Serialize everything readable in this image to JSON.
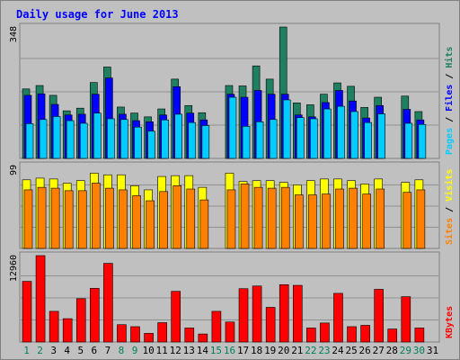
{
  "chart_data": {
    "type": "bar",
    "title": "Daily usage for June 2013",
    "x": [
      "1",
      "2",
      "3",
      "4",
      "5",
      "6",
      "7",
      "8",
      "9",
      "10",
      "11",
      "12",
      "13",
      "14",
      "15",
      "16",
      "17",
      "18",
      "19",
      "20",
      "21",
      "22",
      "23",
      "24",
      "25",
      "26",
      "27",
      "28",
      "29",
      "30",
      "31"
    ],
    "weekend_days": [
      1,
      2,
      8,
      9,
      15,
      16,
      22,
      23,
      29,
      30
    ],
    "panels": [
      {
        "id": "top",
        "ymax_label": "348",
        "ymax": 348,
        "right_label_parts": [
          "Pages",
          " / ",
          "Files",
          " / ",
          "Hits"
        ],
        "series": [
          {
            "name": "Hits",
            "color": "#1e8060",
            "values": [
              184,
              193,
              167,
              126,
              133,
              201,
              242,
              136,
              120,
              110,
              131,
              210,
              140,
              121,
              0,
              193,
              192,
              245,
              210,
              348,
              147,
              142,
              170,
              200,
              191,
              135,
              162,
              0,
              165,
              124,
              0
            ]
          },
          {
            "name": "Files",
            "color": "#0000ff",
            "values": [
              167,
              171,
              143,
              115,
              117,
              170,
              213,
              117,
              100,
              97,
              115,
              190,
              120,
              102,
              0,
              170,
              162,
              180,
              170,
              170,
              115,
              110,
              148,
              180,
              152,
              107,
              140,
              0,
              130,
              102,
              0
            ]
          },
          {
            "name": "Pages",
            "color": "#00ccff",
            "values": [
              92,
              103,
              111,
              100,
              93,
              120,
              105,
              103,
              83,
              72,
              102,
              117,
              95,
              87,
              0,
              162,
              85,
              97,
              103,
              155,
              108,
              105,
              131,
              138,
              124,
              95,
              118,
              0,
              93,
              90,
              0
            ]
          }
        ]
      },
      {
        "id": "middle",
        "ymax_label": "99",
        "ymax": 99,
        "right_label_parts": [
          "Sites",
          " / ",
          "Visits"
        ],
        "series": [
          {
            "name": "Visits",
            "color": "#ffff00",
            "values": [
              82,
              84,
              83,
              78,
              81,
              90,
              88,
              88,
              75,
              70,
              86,
              87,
              87,
              73,
              0,
              90,
              80,
              81,
              81,
              79,
              76,
              81,
              83,
              83,
              81,
              77,
              83,
              0,
              79,
              82,
              0
            ]
          },
          {
            "name": "Sites",
            "color": "#ff8000",
            "values": [
              70,
              73,
              72,
              69,
              69,
              78,
              72,
              70,
              63,
              57,
              68,
              75,
              71,
              58,
              0,
              70,
              77,
              73,
              72,
              73,
              64,
              64,
              65,
              71,
              72,
              65,
              71,
              0,
              67,
              70,
              0
            ]
          }
        ]
      },
      {
        "id": "bottom",
        "ymax_label": "12960",
        "ymax": 12960,
        "right_label_parts": [
          "KBytes"
        ],
        "series": [
          {
            "name": "KBytes",
            "color": "#ff0000",
            "values": [
              9100,
              12960,
              4600,
              3500,
              6500,
              8050,
              11800,
              2600,
              2300,
              1300,
              2900,
              7600,
              2100,
              1200,
              4600,
              3000,
              8000,
              8400,
              5200,
              8600,
              8500,
              2100,
              2850,
              7300,
              2300,
              2500,
              7900,
              1950,
              6800,
              2100,
              0
            ]
          }
        ]
      }
    ]
  }
}
